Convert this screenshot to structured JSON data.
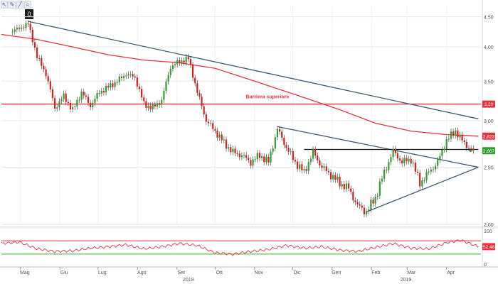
{
  "toolbar": {
    "tools": [
      "pointer-tool",
      "pencil-tool",
      "line-tool",
      "zoom-tool"
    ],
    "badge": "0"
  },
  "colors": {
    "up": "#2f9e2f",
    "down": "#d61f1f",
    "ma": "#e8333e",
    "trend": "#3c5a73",
    "level": "#111111",
    "barrier": "#e8333e",
    "rsi_line": "#e8333e",
    "rsi_upper": "#e8333e",
    "rsi_lower": "#2db52d",
    "grid": "#e6e6e6",
    "axis_text": "#555555"
  },
  "chart_data": [
    {
      "type": "candlestick",
      "title": "",
      "yscale": "log",
      "ylim": [
        2.0,
        4.7
      ],
      "yticks": [
        "4,50",
        "4,00",
        "3,50",
        "3,00",
        "2,50",
        "2,00"
      ],
      "ytick_values": [
        4.5,
        4.0,
        3.5,
        3.0,
        2.5,
        2.0
      ],
      "x_months": [
        "Mag",
        "Giu",
        "Lug",
        "Ago",
        "Set",
        "Ott",
        "Nov",
        "Dic",
        "Gen",
        "Feb",
        "Mar",
        "Apr"
      ],
      "x_years": [
        "2018",
        "2019"
      ],
      "close_path": [
        [
          "2018-04-23",
          4.25
        ],
        [
          "2018-04-30",
          4.3
        ],
        [
          "2018-05-07",
          4.38
        ],
        [
          "2018-05-14",
          3.85
        ],
        [
          "2018-05-21",
          3.6
        ],
        [
          "2018-05-28",
          3.15
        ],
        [
          "2018-06-04",
          3.3
        ],
        [
          "2018-06-11",
          3.12
        ],
        [
          "2018-06-18",
          3.35
        ],
        [
          "2018-06-25",
          3.18
        ],
        [
          "2018-07-02",
          3.35
        ],
        [
          "2018-07-09",
          3.42
        ],
        [
          "2018-07-16",
          3.5
        ],
        [
          "2018-07-23",
          3.6
        ],
        [
          "2018-07-30",
          3.55
        ],
        [
          "2018-08-06",
          3.2
        ],
        [
          "2018-08-13",
          3.15
        ],
        [
          "2018-08-20",
          3.25
        ],
        [
          "2018-08-27",
          3.7
        ],
        [
          "2018-09-03",
          3.78
        ],
        [
          "2018-09-10",
          3.82
        ],
        [
          "2018-09-17",
          3.35
        ],
        [
          "2018-09-24",
          3.0
        ],
        [
          "2018-10-01",
          2.88
        ],
        [
          "2018-10-08",
          2.75
        ],
        [
          "2018-10-15",
          2.65
        ],
        [
          "2018-10-22",
          2.62
        ],
        [
          "2018-10-29",
          2.55
        ],
        [
          "2018-11-05",
          2.62
        ],
        [
          "2018-11-12",
          2.55
        ],
        [
          "2018-11-19",
          2.9
        ],
        [
          "2018-11-26",
          2.7
        ],
        [
          "2018-12-03",
          2.55
        ],
        [
          "2018-12-10",
          2.45
        ],
        [
          "2018-12-17",
          2.65
        ],
        [
          "2018-12-24",
          2.5
        ],
        [
          "2019-01-07",
          2.35
        ],
        [
          "2019-01-14",
          2.3
        ],
        [
          "2019-01-21",
          2.15
        ],
        [
          "2019-01-28",
          2.1
        ],
        [
          "2019-02-04",
          2.22
        ],
        [
          "2019-02-11",
          2.45
        ],
        [
          "2019-02-18",
          2.66
        ],
        [
          "2019-02-25",
          2.55
        ],
        [
          "2019-03-04",
          2.58
        ],
        [
          "2019-03-11",
          2.35
        ],
        [
          "2019-03-18",
          2.45
        ],
        [
          "2019-03-25",
          2.55
        ],
        [
          "2019-04-01",
          2.78
        ],
        [
          "2019-04-08",
          2.88
        ],
        [
          "2019-04-15",
          2.74
        ],
        [
          "2019-04-22",
          2.667
        ]
      ],
      "moving_average": [
        [
          "2018-04-16",
          4.2
        ],
        [
          "2018-05-14",
          4.12
        ],
        [
          "2018-06-11",
          4.0
        ],
        [
          "2018-07-09",
          3.88
        ],
        [
          "2018-08-06",
          3.8
        ],
        [
          "2018-09-03",
          3.76
        ],
        [
          "2018-10-01",
          3.68
        ],
        [
          "2018-11-01",
          3.5
        ],
        [
          "2018-12-03",
          3.32
        ],
        [
          "2019-01-07",
          3.13
        ],
        [
          "2019-02-04",
          2.97
        ],
        [
          "2019-03-04",
          2.88
        ],
        [
          "2019-04-01",
          2.84
        ],
        [
          "2019-04-26",
          2.823
        ]
      ],
      "annotations": {
        "barrier_label": "Barriera superiore",
        "barrier_value": 3.2,
        "level_value": 2.68,
        "trend_down": [
          [
            "2018-05-07",
            4.42
          ],
          [
            "2019-04-26",
            3.02
          ]
        ],
        "trend_upper": [
          [
            "2018-11-19",
            2.93
          ],
          [
            "2019-04-26",
            2.5
          ]
        ],
        "trend_lower": [
          [
            "2019-01-28",
            2.1
          ],
          [
            "2019-04-26",
            2.5
          ]
        ],
        "level_span": [
          "2018-12-10",
          "2019-04-26"
        ]
      },
      "price_tags": [
        {
          "label": "3,20",
          "value": 3.2,
          "color": "#e8333e"
        },
        {
          "label": "2,823",
          "value": 2.823,
          "color": "#e8333e"
        },
        {
          "label": "2,667",
          "value": 2.667,
          "color": "#2f9e2f"
        }
      ]
    },
    {
      "type": "line",
      "title": "",
      "ylim": [
        0,
        100
      ],
      "yticks": [
        "100",
        "0"
      ],
      "ytick_values": [
        100,
        0
      ],
      "upper_level": 70,
      "lower_level": 30,
      "last_label": "52,48",
      "series": [
        {
          "values": [
            [
              "2018-04-16",
              62
            ],
            [
              "2018-04-30",
              66
            ],
            [
              "2018-05-14",
              46
            ],
            [
              "2018-05-28",
              38
            ],
            [
              "2018-06-11",
              40
            ],
            [
              "2018-06-25",
              48
            ],
            [
              "2018-07-09",
              52
            ],
            [
              "2018-07-23",
              58
            ],
            [
              "2018-08-06",
              46
            ],
            [
              "2018-08-20",
              52
            ],
            [
              "2018-09-03",
              62
            ],
            [
              "2018-09-17",
              56
            ],
            [
              "2018-10-01",
              34
            ],
            [
              "2018-10-15",
              30
            ],
            [
              "2018-10-29",
              38
            ],
            [
              "2018-11-12",
              44
            ],
            [
              "2018-11-26",
              56
            ],
            [
              "2018-12-10",
              48
            ],
            [
              "2018-12-24",
              52
            ],
            [
              "2019-01-07",
              42
            ],
            [
              "2019-01-21",
              38
            ],
            [
              "2019-02-04",
              50
            ],
            [
              "2019-02-18",
              62
            ],
            [
              "2019-03-04",
              48
            ],
            [
              "2019-03-18",
              46
            ],
            [
              "2019-04-01",
              64
            ],
            [
              "2019-04-12",
              72
            ],
            [
              "2019-04-26",
              52.48
            ]
          ]
        }
      ]
    }
  ]
}
